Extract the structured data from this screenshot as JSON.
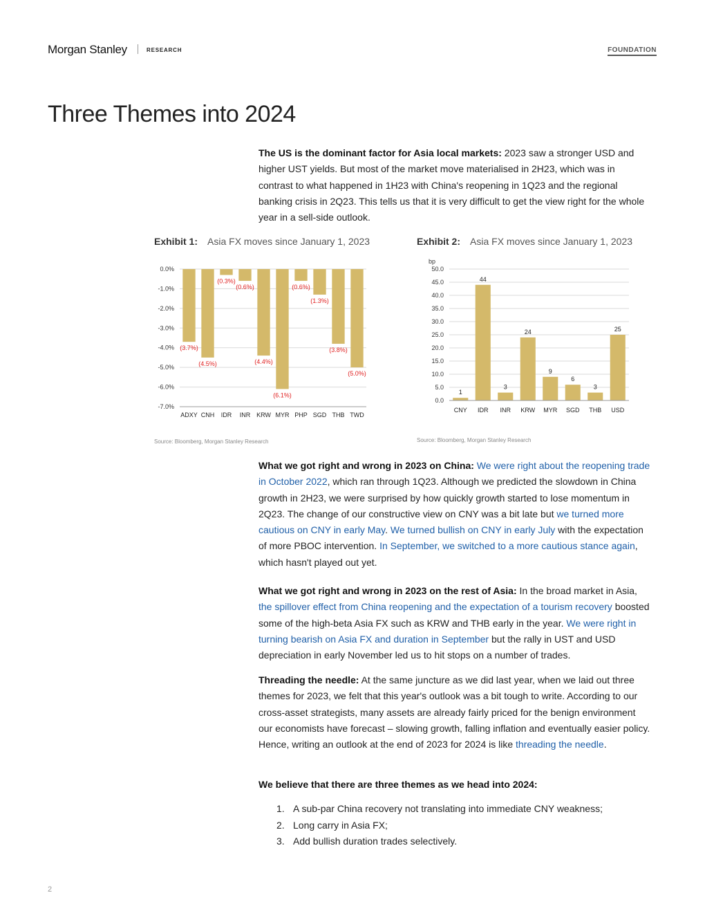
{
  "header": {
    "brand": "Morgan Stanley",
    "brand_sub": "RESEARCH",
    "series": "FOUNDATION"
  },
  "title": "Three Themes into 2024",
  "intro": {
    "lead": "The US is the dominant factor for Asia local markets:",
    "text": " 2023 saw a stronger USD and higher UST yields. But most of the market move materialised in 2H23, which was in contrast to what happened in 1H23 with China's reopening in 1Q23 and the regional banking crisis in 2Q23. This tells us that it is very difficult to get the view right for the whole year in a sell-side outlook."
  },
  "exhibits": [
    {
      "label": "Exhibit 1:",
      "title": "Asia FX moves since January 1, 2023",
      "source": "Source: Bloomberg, Morgan Stanley Research"
    },
    {
      "label": "Exhibit 2:",
      "title": "Asia FX moves since January 1, 2023",
      "source": "Source: Bloomberg, Morgan Stanley Research"
    }
  ],
  "chart_data": [
    {
      "type": "bar",
      "categories": [
        "ADXY",
        "CNH",
        "IDR",
        "INR",
        "KRW",
        "MYR",
        "PHP",
        "SGD",
        "THB",
        "TWD"
      ],
      "values": [
        -3.7,
        -4.5,
        -0.3,
        -0.6,
        -4.4,
        -6.1,
        -0.6,
        -1.3,
        -3.8,
        -5.0
      ],
      "value_labels": [
        "(3.7%)",
        "(4.5%)",
        "(0.3%)",
        "(0.6%)",
        "(4.4%)",
        "(6.1%)",
        "(0.6%)",
        "(1.3%)",
        "(3.8%)",
        "(5.0%)"
      ],
      "yticks": [
        0,
        -1,
        -2,
        -3,
        -4,
        -5,
        -6,
        -7
      ],
      "ytick_labels": [
        "0.0%",
        "-1.0%",
        "-2.0%",
        "-3.0%",
        "-4.0%",
        "-5.0%",
        "-6.0%",
        "-7.0%"
      ],
      "ylim": [
        -7,
        0
      ],
      "grid": true,
      "bar_color": "#d4b96a",
      "label_color": "#e02020"
    },
    {
      "type": "bar",
      "categories": [
        "CNY",
        "IDR",
        "INR",
        "KRW",
        "MYR",
        "SGD",
        "THB",
        "USD"
      ],
      "values": [
        1,
        44,
        3,
        24,
        9,
        6,
        3,
        25
      ],
      "value_labels": [
        "1",
        "44",
        "3",
        "24",
        "9",
        "6",
        "3",
        "25"
      ],
      "ylabel": "bp",
      "yticks": [
        0,
        5,
        10,
        15,
        20,
        25,
        30,
        35,
        40,
        45,
        50
      ],
      "ytick_labels": [
        "0.0",
        "5.0",
        "10.0",
        "15.0",
        "20.0",
        "25.0",
        "30.0",
        "35.0",
        "40.0",
        "45.0",
        "50.0"
      ],
      "ylim": [
        0,
        50
      ],
      "grid": true,
      "bar_color": "#d4b96a",
      "label_color": "#222222"
    }
  ],
  "china": {
    "lead": "What we got right and wrong in 2023 on China:",
    "s1": " ",
    "l1": "We were right about the reopening trade in October 2022",
    "s2": ", which ran through 1Q23. Although we predicted the slowdown in China growth in 2H23, we were surprised by how quickly growth started to lose momentum in 2Q23. The change of our constructive view on CNY was a bit late but ",
    "l2": "we turned more cautious on CNY in early May",
    "s3": ". ",
    "l3": "We turned bullish on CNY in early July",
    "s4": " with the expectation of more PBOC intervention. ",
    "l4": "In September, we switched to a more cautious stance again",
    "s5": ", which hasn't played out yet."
  },
  "rest_asia": {
    "lead": "What we got right and wrong in 2023 on the rest of Asia:",
    "s1": " In the broad market in Asia, ",
    "l1": "the spillover effect from China reopening and the expectation of a tourism recovery",
    "s2": " boosted some of the high-beta Asia FX such as KRW and THB early in the year. ",
    "l2": "We were right in turning bearish on Asia FX and duration in September",
    "s3": " but the rally in UST and USD depreciation in early November led us to hit stops on a number of trades."
  },
  "needle": {
    "lead": "Threading the needle:",
    "s1": " At the same juncture as we did last year, when we laid out three themes for 2023, we felt that this year's outlook was a bit tough to write. According to our cross-asset strategists, many assets are already fairly priced for the benign environment our economists have forecast – slowing growth, falling inflation and eventually easier policy. Hence, writing an outlook at the end of 2023 for 2024 is like ",
    "l1": "threading the needle",
    "s2": "."
  },
  "themes": {
    "heading": "We believe that there are three themes as we head into 2024:",
    "items": [
      {
        "num": "1.",
        "text": "A sub-par China recovery not translating into immediate CNY weakness;"
      },
      {
        "num": "2.",
        "text": "Long carry in Asia FX;"
      },
      {
        "num": "3.",
        "text": "Add bullish duration trades selectively."
      }
    ]
  },
  "page_number": "2"
}
